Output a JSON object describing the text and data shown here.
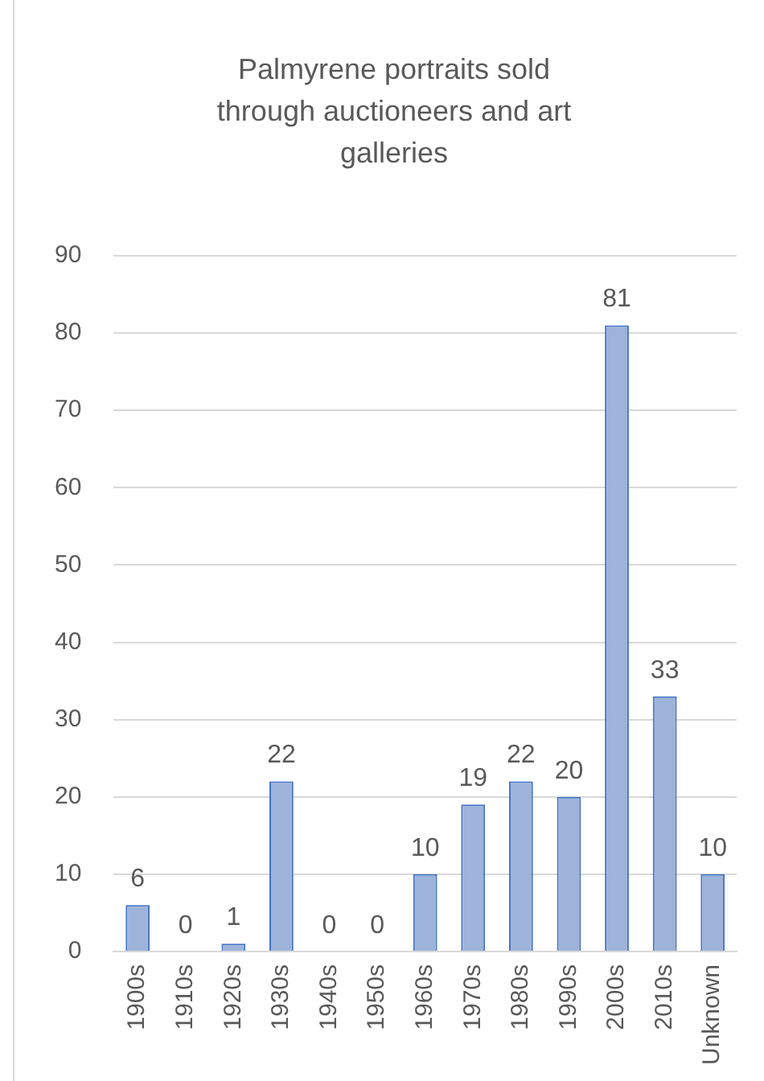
{
  "chart_data": {
    "type": "bar",
    "title": "Palmyrene portraits sold through auctioneers and art galleries",
    "categories": [
      "1900s",
      "1910s",
      "1920s",
      "1930s",
      "1940s",
      "1950s",
      "1960s",
      "1970s",
      "1980s",
      "1990s",
      "2000s",
      "2010s",
      "Unknown"
    ],
    "values": [
      6,
      0,
      1,
      22,
      0,
      0,
      10,
      19,
      22,
      20,
      81,
      33,
      10
    ],
    "color": "#9db3d9",
    "ylim": [
      0,
      90
    ],
    "yticks": [
      0,
      10,
      20,
      30,
      40,
      50,
      60,
      70,
      80,
      90
    ],
    "grid": "y",
    "data_labels": true,
    "legend": false
  }
}
